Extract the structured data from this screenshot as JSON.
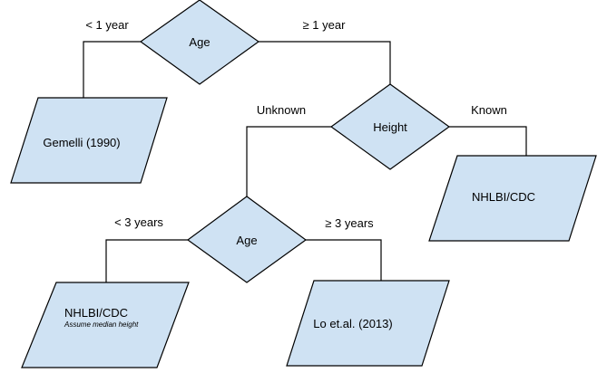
{
  "colors": {
    "node_fill": "#cfe2f3",
    "stroke": "#000000"
  },
  "nodes": {
    "age_root": {
      "label": "Age",
      "shape": "diamond"
    },
    "gemelli": {
      "label": "Gemelli (1990)",
      "shape": "parallelogram"
    },
    "height": {
      "label": "Height",
      "shape": "diamond"
    },
    "nhlbi_known": {
      "label": "NHLBI/CDC",
      "shape": "parallelogram"
    },
    "age_unknown": {
      "label": "Age",
      "shape": "diamond"
    },
    "nhlbi_median": {
      "label": "NHLBI/CDC",
      "note": "Assume median height",
      "shape": "parallelogram"
    },
    "lo": {
      "label": "Lo et.al. (2013)",
      "shape": "parallelogram"
    }
  },
  "edges": {
    "lt1": {
      "label": "< 1 year",
      "from": "age_root",
      "to": "gemelli"
    },
    "ge1": {
      "label": "≥ 1 year",
      "from": "age_root",
      "to": "height"
    },
    "unknown": {
      "label": "Unknown",
      "from": "height",
      "to": "age_unknown"
    },
    "known": {
      "label": "Known",
      "from": "height",
      "to": "nhlbi_known"
    },
    "lt3": {
      "label": "< 3 years",
      "from": "age_unknown",
      "to": "nhlbi_median"
    },
    "ge3": {
      "label": "≥ 3 years",
      "from": "age_unknown",
      "to": "lo"
    }
  }
}
